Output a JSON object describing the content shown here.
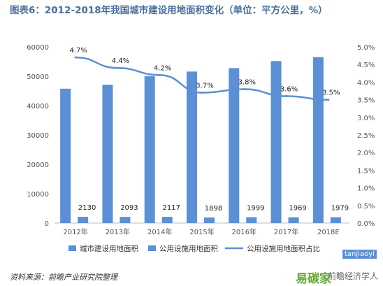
{
  "chart_data": {
    "type": "bar",
    "title": "图表6：2012-2018年我国城市建设用地面积变化（单位：平方公里，%）",
    "categories": [
      "2012年",
      "2013年",
      "2014年",
      "2015年",
      "2016年",
      "2017年",
      "2018E"
    ],
    "series": [
      {
        "name": "城市建设用地面积",
        "type": "bar",
        "axis": "left",
        "values": [
          45750,
          47100,
          49980,
          51590,
          52760,
          55160,
          56500
        ]
      },
      {
        "name": "公用设施用地面积",
        "type": "bar",
        "axis": "left",
        "values": [
          2130,
          2093,
          2117,
          1898,
          1999,
          1969,
          1979
        ]
      },
      {
        "name": "公用设施用地面积占比",
        "type": "line",
        "axis": "right",
        "values": [
          4.7,
          4.4,
          4.2,
          3.7,
          3.8,
          3.6,
          3.5
        ]
      }
    ],
    "bar_labels": [
      "2130",
      "2093",
      "2117",
      "1898",
      "1999",
      "1969",
      "1979"
    ],
    "line_labels": [
      "4.7%",
      "4.4%",
      "4.2%",
      "3.7%",
      "3.8%",
      "3.6%",
      "3.5%"
    ],
    "y_left": {
      "range": [
        0,
        60000
      ],
      "ticks": [
        "0",
        "10000",
        "20000",
        "30000",
        "40000",
        "50000",
        "60000"
      ]
    },
    "y_right": {
      "range": [
        0,
        5.0
      ],
      "ticks": [
        "0.0%",
        "0.5%",
        "1.0%",
        "1.5%",
        "2.0%",
        "2.5%",
        "3.0%",
        "3.5%",
        "4.0%",
        "4.5%",
        "5.0%"
      ]
    },
    "grid": false,
    "legend_position": "bottom"
  },
  "source": "资料来源：前瞻产业研究院整理",
  "watermark": {
    "brand": "易碳家",
    "text": "前瞻经济学人",
    "badge": "tanjiaoyi"
  },
  "colors": {
    "bar": "#5b8fd6",
    "line": "#5b8fd6",
    "axis_text": "#555555",
    "title": "#4a6f9c"
  }
}
